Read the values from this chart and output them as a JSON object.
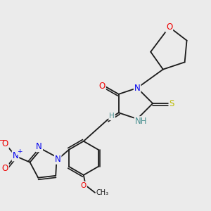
{
  "bg_color": "#ebebeb",
  "atom_colors": {
    "C": "#1a1a1a",
    "N": "#0000ee",
    "O": "#ee0000",
    "S": "#bbbb00",
    "H": "#4a9090",
    "bond": "#1a1a1a"
  },
  "figsize": [
    3.0,
    3.0
  ],
  "dpi": 100
}
